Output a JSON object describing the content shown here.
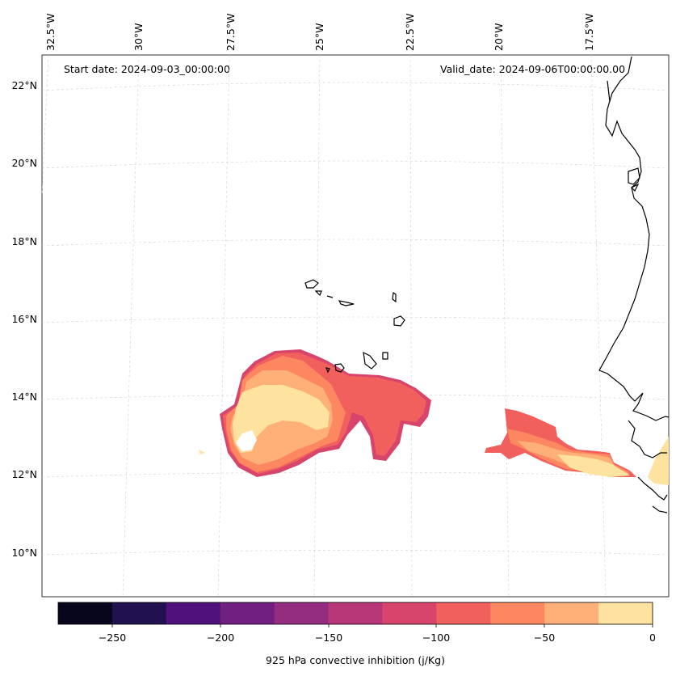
{
  "header": {
    "start_date": "Start date: 2024-09-03_00:00:00",
    "valid_date": "Valid_date: 2024-09-06T00:00:00.00"
  },
  "map": {
    "longitude_labels": [
      "32.5°W",
      "30°W",
      "27.5°W",
      "25°W",
      "22.5°W",
      "20°W",
      "17.5°W"
    ],
    "latitude_labels": [
      "22°N",
      "20°N",
      "18°N",
      "16°N",
      "14°N",
      "12°N",
      "10°N"
    ],
    "field": "925 hPa convective inhibition",
    "units": "j/Kg"
  },
  "colorbar": {
    "title": "925 hPa convective inhibition (j/Kg)",
    "ticks": [
      "−250",
      "−200",
      "−150",
      "−100",
      "−50",
      "0"
    ],
    "levels": [
      -275,
      -250,
      -225,
      -200,
      -175,
      -150,
      -125,
      -100,
      -75,
      -50,
      -25,
      0
    ],
    "colors": [
      "#07061c",
      "#221150",
      "#4f127b",
      "#711f81",
      "#942c80",
      "#b73779",
      "#d8456c",
      "#f1605d",
      "#fc8761",
      "#feb078",
      "#fde2a0"
    ]
  }
}
